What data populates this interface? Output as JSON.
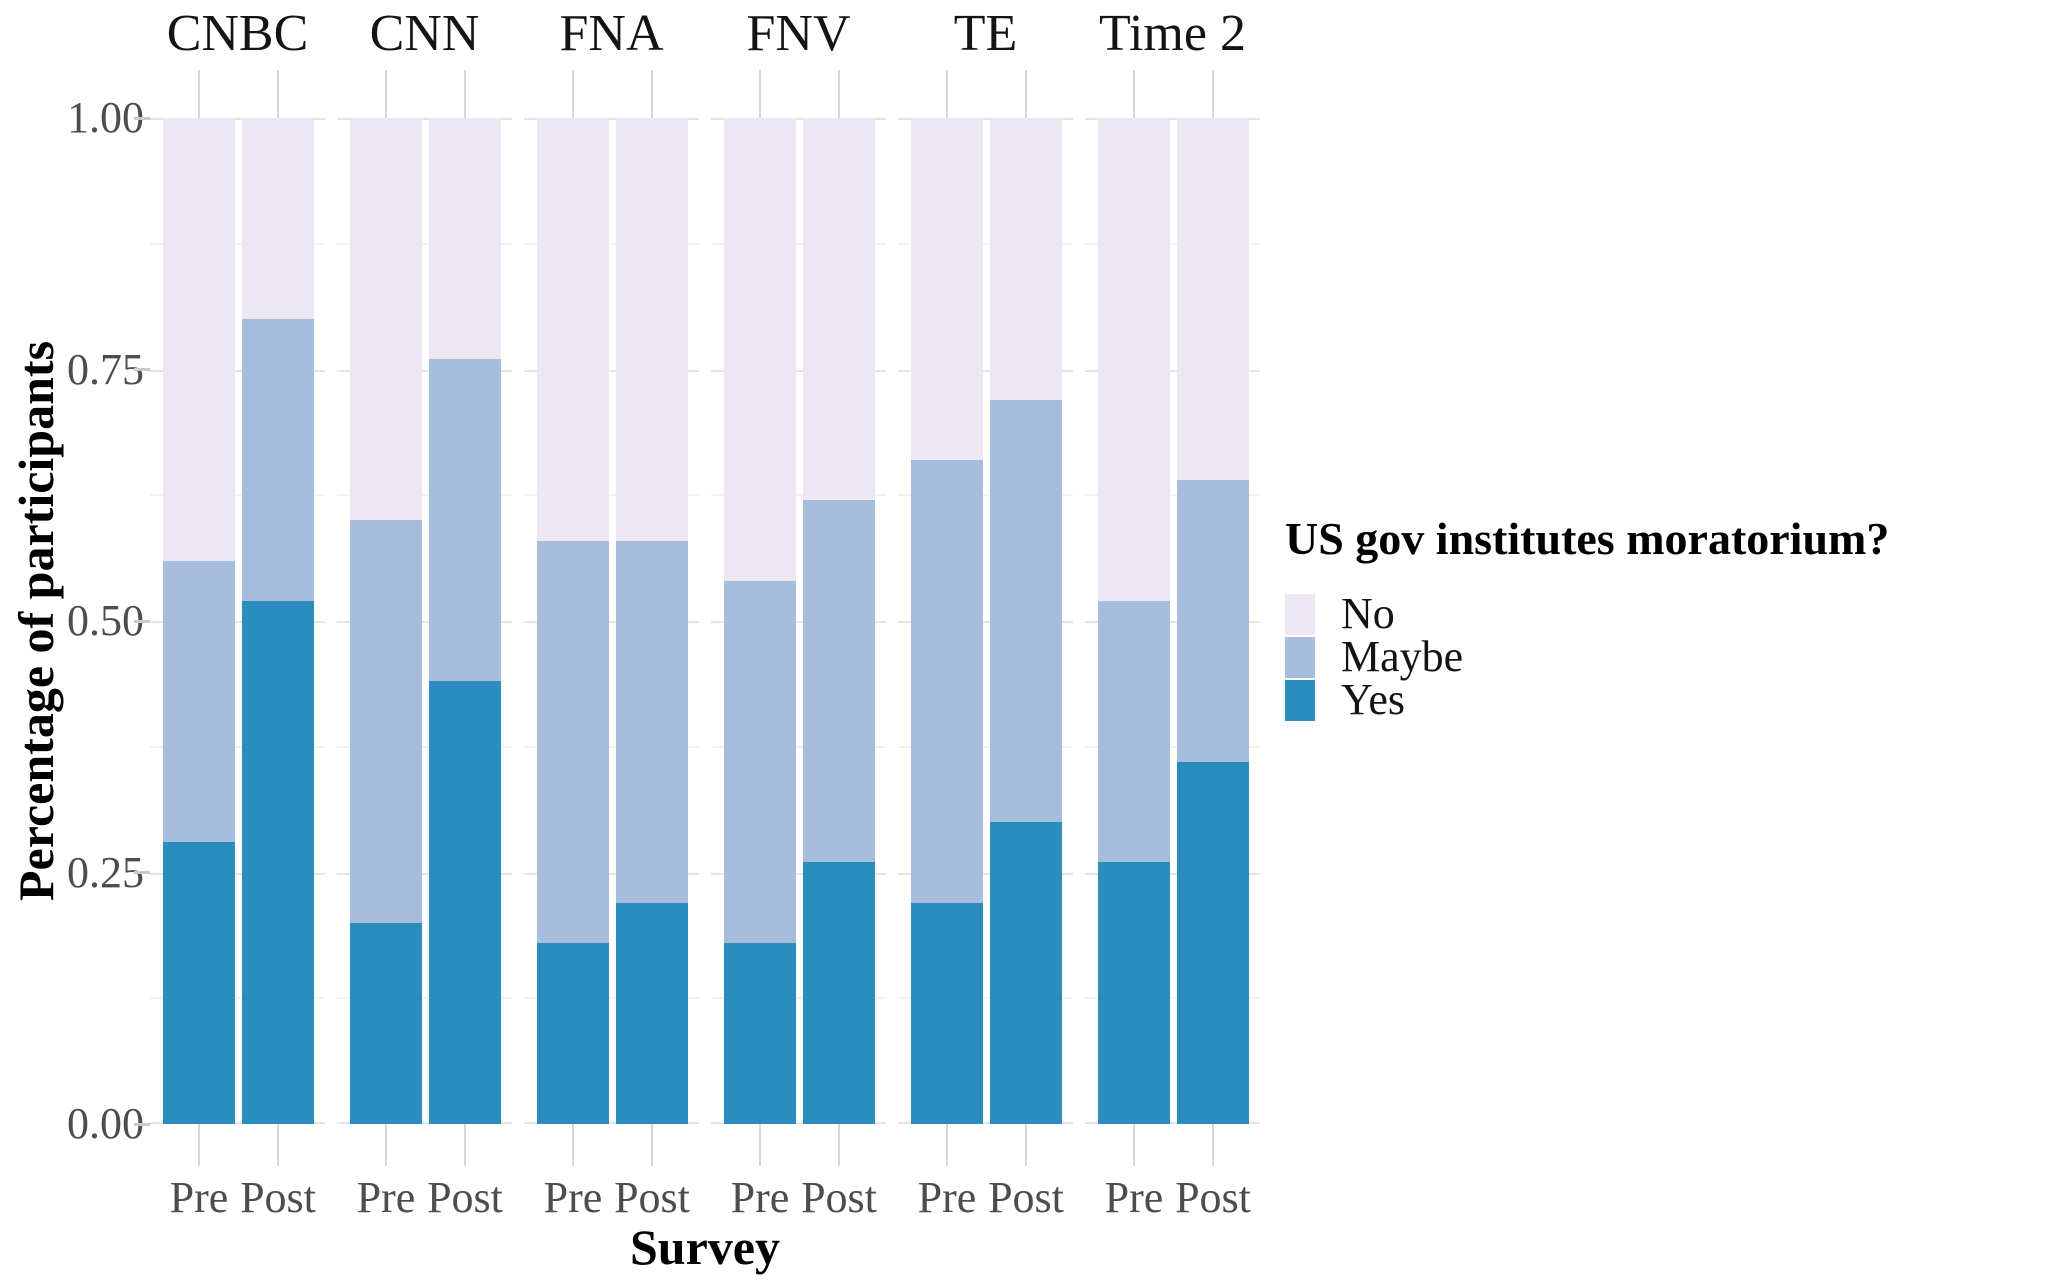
{
  "chart_data": {
    "type": "bar",
    "subtype": "stacked-normalized-faceted",
    "title": "",
    "xlabel": "Survey",
    "ylabel": "Percentage of participants",
    "legend_title": "US gov institutes moratorium?",
    "legend_position": "right",
    "legend_entries": [
      "No",
      "Maybe",
      "Yes"
    ],
    "series_colors": {
      "No": "#ECE7F2",
      "Maybe": "#A6BDDB",
      "Yes": "#2B8CBE"
    },
    "stack_order_bottom_to_top": [
      "Yes",
      "Maybe",
      "No"
    ],
    "facets": [
      "CNBC",
      "CNN",
      "FNA",
      "FNV",
      "TE",
      "Time 2"
    ],
    "x_categories": [
      "Pre",
      "Post"
    ],
    "ylim": [
      0,
      1
    ],
    "ytick_values": [
      0.0,
      0.25,
      0.5,
      0.75,
      1.0
    ],
    "ytick_labels": [
      "0.00",
      "0.25",
      "0.50",
      "0.75",
      "1.00"
    ],
    "grid": "major at 0.25 steps, minor at 0.125 steps, very light grey on white",
    "values": {
      "CNBC": {
        "Pre": {
          "Yes": 0.28,
          "Maybe": 0.28,
          "No": 0.44
        },
        "Post": {
          "Yes": 0.52,
          "Maybe": 0.28,
          "No": 0.2
        }
      },
      "CNN": {
        "Pre": {
          "Yes": 0.2,
          "Maybe": 0.4,
          "No": 0.4
        },
        "Post": {
          "Yes": 0.44,
          "Maybe": 0.32,
          "No": 0.24
        }
      },
      "FNA": {
        "Pre": {
          "Yes": 0.18,
          "Maybe": 0.4,
          "No": 0.42
        },
        "Post": {
          "Yes": 0.22,
          "Maybe": 0.36,
          "No": 0.42
        }
      },
      "FNV": {
        "Pre": {
          "Yes": 0.18,
          "Maybe": 0.36,
          "No": 0.46
        },
        "Post": {
          "Yes": 0.26,
          "Maybe": 0.36,
          "No": 0.38
        }
      },
      "TE": {
        "Pre": {
          "Yes": 0.22,
          "Maybe": 0.44,
          "No": 0.34
        },
        "Post": {
          "Yes": 0.3,
          "Maybe": 0.42,
          "No": 0.28
        }
      },
      "Time 2": {
        "Pre": {
          "Yes": 0.26,
          "Maybe": 0.26,
          "No": 0.48
        },
        "Post": {
          "Yes": 0.36,
          "Maybe": 0.28,
          "No": 0.36
        }
      }
    },
    "text_colors": {
      "tick_labels": "#4d4d4d",
      "titles": "#000000",
      "facet_labels": "#141414"
    }
  }
}
